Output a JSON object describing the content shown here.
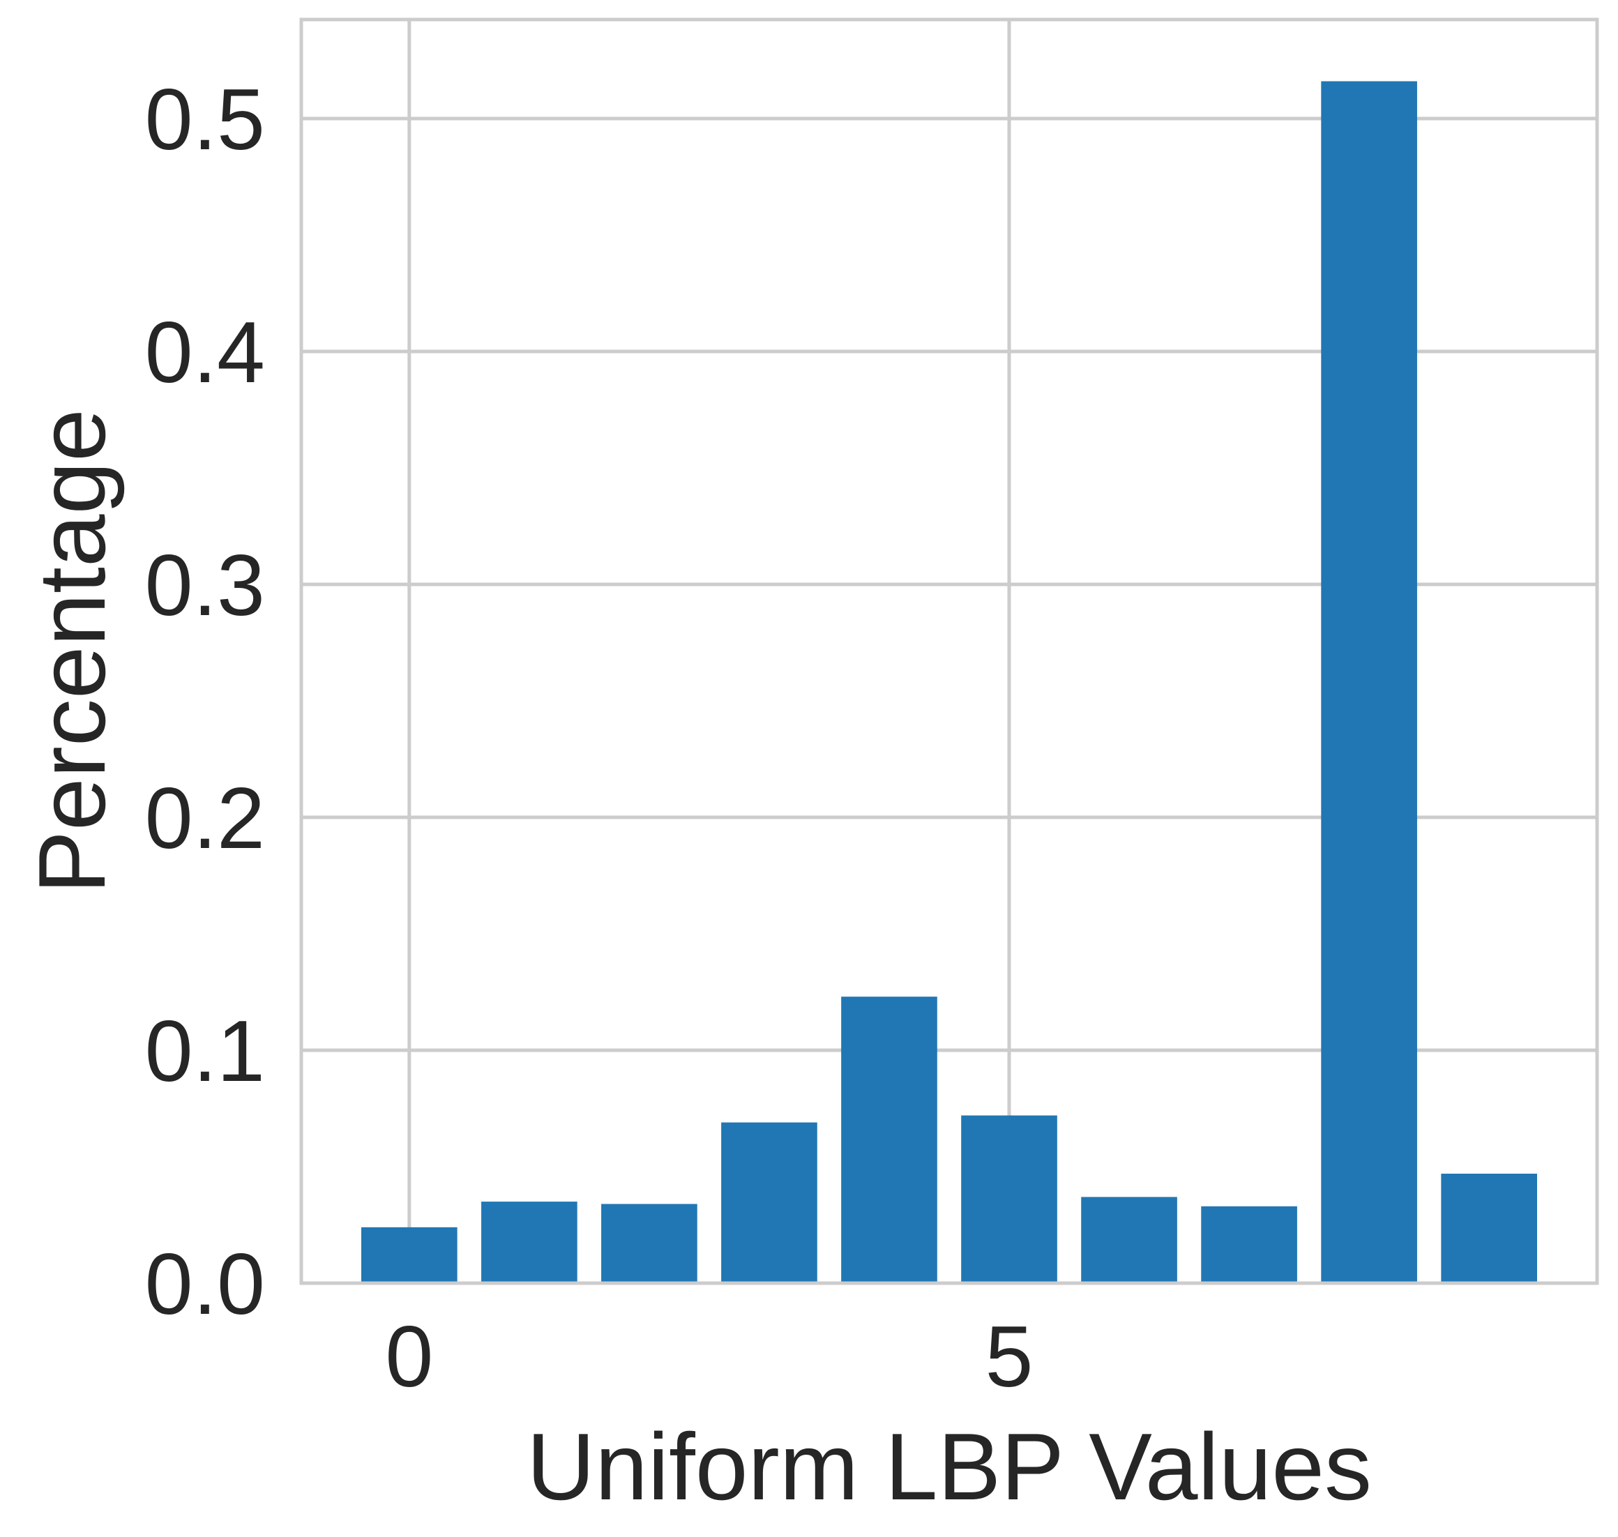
{
  "chart_data": {
    "type": "bar",
    "xlabel": "Uniform LBP Values",
    "ylabel": "Percentage",
    "x": [
      0,
      1,
      2,
      3,
      4,
      5,
      6,
      7,
      8,
      9
    ],
    "values": [
      0.024,
      0.035,
      0.034,
      0.069,
      0.123,
      0.072,
      0.037,
      0.033,
      0.516,
      0.047
    ],
    "xlim": [
      -0.9,
      9.9
    ],
    "ylim": [
      0,
      0.5425
    ],
    "xticks": [
      0,
      5
    ],
    "xtick_labels": [
      "0",
      "5"
    ],
    "yticks": [
      0.0,
      0.1,
      0.2,
      0.3,
      0.4,
      0.5
    ],
    "ytick_labels": [
      "0.0",
      "0.1",
      "0.2",
      "0.3",
      "0.4",
      "0.5"
    ],
    "bar_width": 0.8,
    "grid": true,
    "colors": {
      "bar": "#2077b4",
      "grid": "#cccccc",
      "frame": "#cccccc",
      "text": "#262626"
    }
  }
}
